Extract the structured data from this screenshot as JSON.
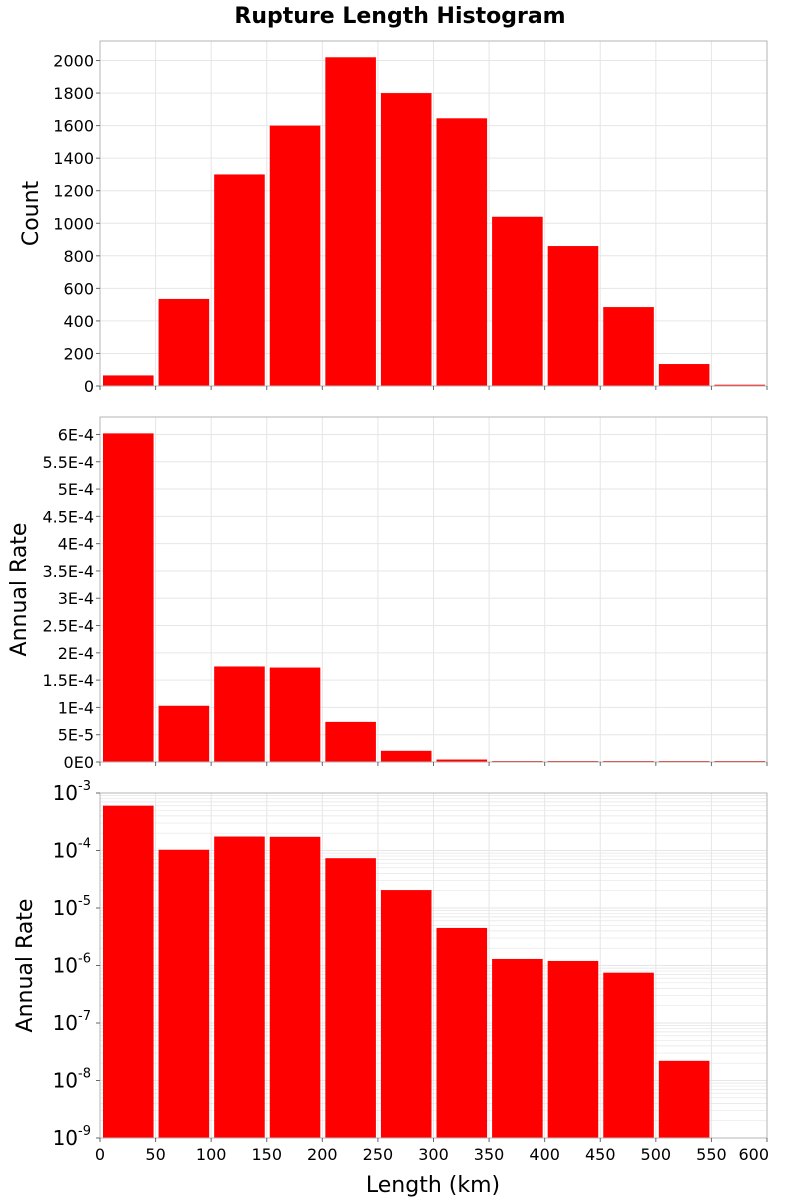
{
  "title": "Rupture Length Histogram",
  "xlabel": "Length (km)",
  "x_ticks": [
    "0",
    "50",
    "100",
    "150",
    "200",
    "250",
    "300",
    "350",
    "400",
    "450",
    "500",
    "550",
    "600"
  ],
  "bar_color": "#ff0000",
  "grid_color": "#e6e6e6",
  "frame_color": "#b4b4b4",
  "chart_data": [
    {
      "type": "bar",
      "ylabel": "Count",
      "xlim": [
        0,
        600
      ],
      "ylim": [
        0,
        2120
      ],
      "yscale": "linear",
      "bin_width": 50,
      "grid": true,
      "x": [
        25,
        75,
        125,
        175,
        225,
        275,
        325,
        375,
        425,
        475,
        525,
        575
      ],
      "values": [
        65,
        535,
        1300,
        1600,
        2020,
        1800,
        1645,
        1040,
        860,
        485,
        135,
        8
      ],
      "y_ticks": [
        0,
        200,
        400,
        600,
        800,
        1000,
        1200,
        1400,
        1600,
        1800,
        2000
      ],
      "y_tick_labels": [
        "0",
        "200",
        "400",
        "600",
        "800",
        "1000",
        "1200",
        "1400",
        "1600",
        "1800",
        "2000"
      ]
    },
    {
      "type": "bar",
      "ylabel": "Annual Rate",
      "xlim": [
        0,
        600
      ],
      "ylim": [
        0,
        0.000632
      ],
      "yscale": "linear",
      "bin_width": 50,
      "grid": true,
      "x": [
        25,
        75,
        125,
        175,
        225,
        275,
        325,
        375,
        425,
        475,
        525,
        575
      ],
      "values": [
        0.000602,
        0.000103,
        0.000175,
        0.000173,
        7.35e-05,
        2.05e-05,
        4.5e-06,
        1.3e-06,
        1.2e-06,
        7.5e-07,
        2.2e-08,
        0
      ],
      "y_ticks": [
        0,
        5e-05,
        0.0001,
        0.00015,
        0.0002,
        0.00025,
        0.0003,
        0.00035,
        0.0004,
        0.00045,
        0.0005,
        0.00055,
        0.0006
      ],
      "y_tick_labels": [
        "0E0",
        "5E-5",
        "1E-4",
        "1.5E-4",
        "2E-4",
        "2.5E-4",
        "3E-4",
        "3.5E-4",
        "4E-4",
        "4.5E-4",
        "5E-4",
        "5.5E-4",
        "6E-4"
      ]
    },
    {
      "type": "bar",
      "ylabel": "Annual Rate",
      "xlim": [
        0,
        600
      ],
      "ylim": [
        1e-09,
        0.001
      ],
      "yscale": "log",
      "bin_width": 50,
      "grid": true,
      "x": [
        25,
        75,
        125,
        175,
        225,
        275,
        325,
        375,
        425,
        475,
        525,
        575
      ],
      "values": [
        0.000602,
        0.000103,
        0.000175,
        0.000173,
        7.35e-05,
        2.05e-05,
        4.5e-06,
        1.3e-06,
        1.2e-06,
        7.5e-07,
        2.2e-08,
        0
      ],
      "y_ticks": [
        1e-09,
        1e-08,
        1e-07,
        1e-06,
        1e-05,
        0.0001,
        0.001
      ],
      "y_tick_labels": [
        "10",
        "10",
        "10",
        "10",
        "10",
        "10",
        "10"
      ],
      "y_tick_exponents": [
        "-9",
        "-8",
        "-7",
        "-6",
        "-5",
        "-4",
        "-3"
      ]
    }
  ]
}
